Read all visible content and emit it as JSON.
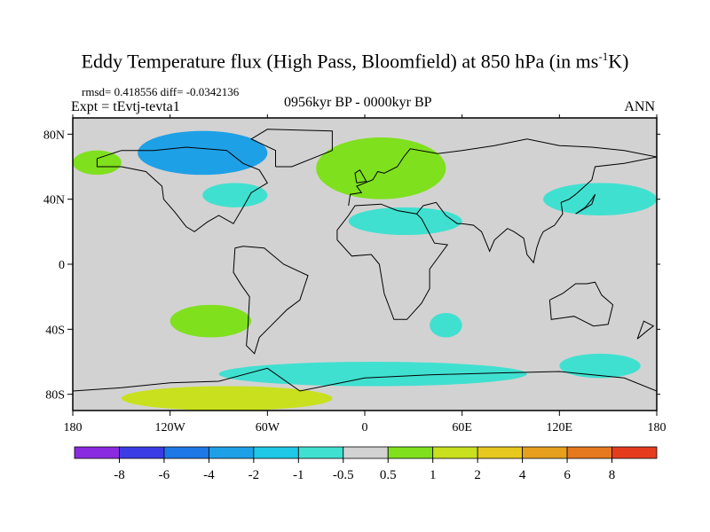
{
  "title": {
    "main": "Eddy Temperature flux (High Pass, Bloomfield) at 850 hPa (in ms",
    "sup": "-1",
    "tail": "K)"
  },
  "stats": "rmsd= 0.418556 diff= -0.0342136",
  "expt": "Expt = tEvtj-tevta1",
  "period": "0956kyr BP - 0000kyr BP",
  "season": "ANN",
  "colors": {
    "land_ocean_neutral": "#d2d2d2",
    "coastline": "#000000"
  },
  "chart_data": {
    "type": "heatmap",
    "title": "Eddy Temperature flux (High Pass, Bloomfield) at 850 hPa (in ms-1K)",
    "projection": "cylindrical equidistant",
    "xlim": [
      -180,
      180
    ],
    "ylim": [
      -90,
      90
    ],
    "x_ticks": [
      {
        "value": -180,
        "label": "180"
      },
      {
        "value": -120,
        "label": "120W"
      },
      {
        "value": -60,
        "label": "60W"
      },
      {
        "value": 0,
        "label": "0"
      },
      {
        "value": 60,
        "label": "60E"
      },
      {
        "value": 120,
        "label": "120E"
      },
      {
        "value": 180,
        "label": "180"
      }
    ],
    "y_ticks": [
      {
        "value": 80,
        "label": "80N"
      },
      {
        "value": 40,
        "label": "40N"
      },
      {
        "value": 0,
        "label": "0"
      },
      {
        "value": -40,
        "label": "40S"
      },
      {
        "value": -80,
        "label": "80S"
      }
    ],
    "colorbar": {
      "levels": [
        "-8",
        "-6",
        "-4",
        "-2",
        "-1",
        "-0.5",
        "0.5",
        "1",
        "2",
        "4",
        "6",
        "8"
      ],
      "colors": [
        "#8a2be2",
        "#3c3ce6",
        "#1e78e6",
        "#1ea0e6",
        "#1ec8e6",
        "#40e0d0",
        "#d2d2d2",
        "#7fe01e",
        "#c8e01e",
        "#e6c81e",
        "#e6a01e",
        "#e6781e",
        "#e63c1e"
      ]
    },
    "regions": [
      {
        "name": "canadian-arctic-negative",
        "category": 3,
        "lon": [
          -140,
          -60
        ],
        "lat": [
          55,
          82
        ]
      },
      {
        "name": "north-pacific-positive",
        "category": 7,
        "lon": [
          -180,
          -150
        ],
        "lat": [
          55,
          70
        ]
      },
      {
        "name": "north-atlantic-positive",
        "category": 7,
        "lon": [
          -30,
          50
        ],
        "lat": [
          40,
          78
        ]
      },
      {
        "name": "mid-atlantic-negative",
        "category": 5,
        "lon": [
          -100,
          -60
        ],
        "lat": [
          35,
          50
        ]
      },
      {
        "name": "central-asia-negative",
        "category": 5,
        "lon": [
          -10,
          60
        ],
        "lat": [
          18,
          35
        ]
      },
      {
        "name": "south-pacific-positive",
        "category": 7,
        "lon": [
          -120,
          -70
        ],
        "lat": [
          -45,
          -25
        ]
      },
      {
        "name": "south-atlantic-negative",
        "category": 5,
        "lon": [
          40,
          60
        ],
        "lat": [
          -45,
          -30
        ]
      },
      {
        "name": "southern-ocean-negative",
        "category": 5,
        "lon": [
          -90,
          100
        ],
        "lat": [
          -75,
          -60
        ]
      },
      {
        "name": "antarctic-positive",
        "category": 8,
        "lon": [
          -150,
          -20
        ],
        "lat": [
          -90,
          -75
        ]
      },
      {
        "name": "east-asia-negative",
        "category": 5,
        "lon": [
          110,
          180
        ],
        "lat": [
          30,
          50
        ]
      },
      {
        "name": "southwest-pacific-negative",
        "category": 5,
        "lon": [
          120,
          170
        ],
        "lat": [
          -70,
          -55
        ]
      }
    ]
  }
}
